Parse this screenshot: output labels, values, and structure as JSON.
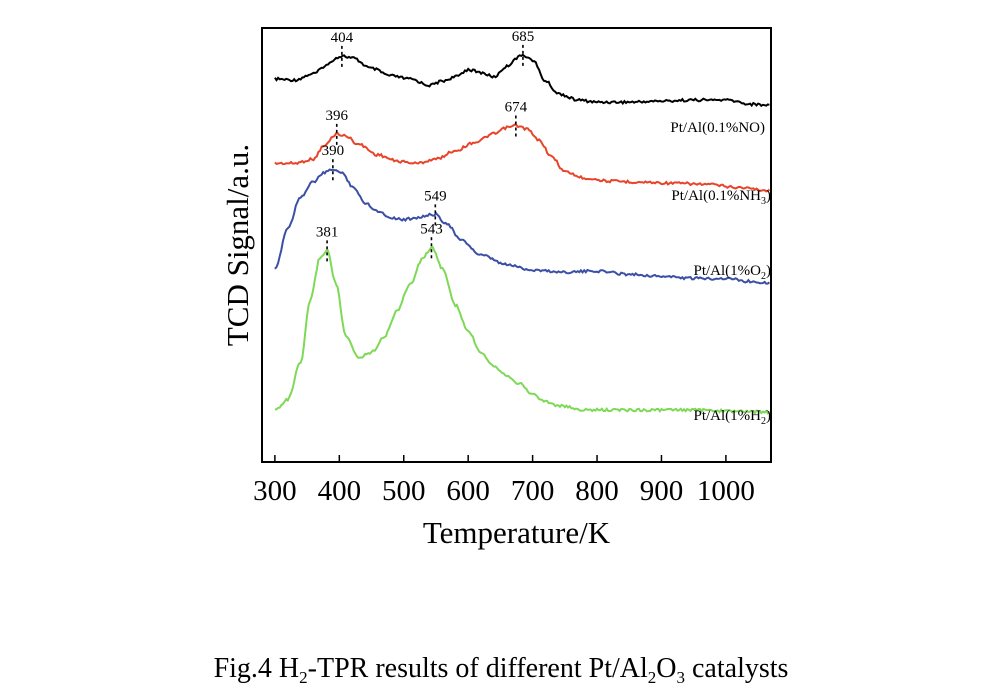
{
  "chart_data": {
    "type": "line",
    "xlabel": "Temperature/K",
    "ylabel": "TCD Signal/a.u.",
    "xlim": [
      280,
      1070
    ],
    "xticks": [
      300,
      400,
      500,
      600,
      700,
      800,
      900,
      1000
    ],
    "grid": false,
    "legend": "inline labels at right end of each curve",
    "series": [
      {
        "name": "Pt/Al(0.1%NO)",
        "color": "#000000",
        "label_parts": [
          "Pt/Al(0.1%NO)"
        ],
        "x": [
          300,
          330,
          360,
          380,
          395,
          404,
          420,
          450,
          480,
          510,
          540,
          560,
          580,
          600,
          620,
          640,
          660,
          675,
          685,
          700,
          720,
          740,
          770,
          800,
          850,
          900,
          950,
          1000,
          1040,
          1068
        ],
        "y": [
          0.2,
          0.19,
          0.25,
          0.33,
          0.4,
          0.42,
          0.4,
          0.3,
          0.23,
          0.2,
          0.14,
          0.18,
          0.22,
          0.29,
          0.26,
          0.22,
          0.32,
          0.4,
          0.43,
          0.38,
          0.18,
          0.06,
          0.0,
          -0.02,
          -0.02,
          -0.01,
          0.0,
          0.0,
          -0.04,
          -0.05
        ],
        "peaks": [
          {
            "x": 404,
            "label": "404"
          },
          {
            "x": 685,
            "label": "685"
          }
        ]
      },
      {
        "name": "Pt/Al(0.1%NH3)",
        "color": "#e8442a",
        "label_parts": [
          "Pt/Al(0.1%NH",
          "3",
          ")"
        ],
        "x": [
          300,
          330,
          360,
          375,
          396,
          410,
          430,
          460,
          490,
          520,
          550,
          580,
          610,
          640,
          660,
          674,
          690,
          710,
          730,
          750,
          780,
          820,
          870,
          920,
          970,
          1020,
          1068
        ],
        "y": [
          0.14,
          0.14,
          0.18,
          0.3,
          0.42,
          0.4,
          0.32,
          0.22,
          0.16,
          0.14,
          0.18,
          0.26,
          0.34,
          0.42,
          0.48,
          0.5,
          0.47,
          0.36,
          0.2,
          0.06,
          0.0,
          -0.03,
          -0.04,
          -0.05,
          -0.06,
          -0.09,
          -0.12
        ],
        "peaks": [
          {
            "x": 396,
            "label": "396"
          },
          {
            "x": 674,
            "label": "674"
          }
        ]
      },
      {
        "name": "Pt/Al(1%O2)",
        "color": "#3b4fa6",
        "label_parts": [
          "Pt/Al(1%O",
          "2",
          ")"
        ],
        "x": [
          300,
          320,
          340,
          360,
          375,
          390,
          405,
          420,
          440,
          460,
          480,
          500,
          520,
          549,
          565,
          590,
          620,
          660,
          700,
          750,
          800,
          850,
          900,
          950,
          1000,
          1040,
          1068
        ],
        "y": [
          0.0,
          0.4,
          0.7,
          0.84,
          0.92,
          0.96,
          0.92,
          0.8,
          0.64,
          0.56,
          0.5,
          0.48,
          0.5,
          0.53,
          0.45,
          0.28,
          0.14,
          0.05,
          0.0,
          -0.02,
          -0.01,
          -0.04,
          -0.06,
          -0.08,
          -0.08,
          -0.11,
          -0.12
        ],
        "peaks": [
          {
            "x": 390,
            "label": "390"
          },
          {
            "x": 549,
            "label": "549"
          }
        ]
      },
      {
        "name": "Pt/Al(1%H2)",
        "color": "#7ed957",
        "label_parts": [
          "Pt/Al(1%H",
          "2",
          ")"
        ],
        "x": [
          300,
          320,
          340,
          355,
          370,
          381,
          395,
          410,
          430,
          450,
          470,
          490,
          510,
          530,
          543,
          560,
          580,
          600,
          620,
          640,
          660,
          680,
          700,
          720,
          740,
          780,
          850,
          900,
          950,
          1000,
          1068
        ],
        "y": [
          0.0,
          0.1,
          0.45,
          1.05,
          1.45,
          1.52,
          1.2,
          0.7,
          0.5,
          0.55,
          0.7,
          0.95,
          1.2,
          1.45,
          1.55,
          1.35,
          1.0,
          0.75,
          0.55,
          0.42,
          0.33,
          0.25,
          0.15,
          0.08,
          0.04,
          0.0,
          0.0,
          0.0,
          0.0,
          -0.01,
          -0.02
        ],
        "peaks": [
          {
            "x": 381,
            "label": "381"
          },
          {
            "x": 543,
            "label": "543"
          }
        ]
      }
    ]
  },
  "caption": {
    "prefix": "Fig.4    H",
    "sub1": "2",
    "mid1": "-TPR results of different Pt/Al",
    "sub2": "2",
    "mid2": "O",
    "sub3": "3",
    "suffix": " catalysts"
  }
}
